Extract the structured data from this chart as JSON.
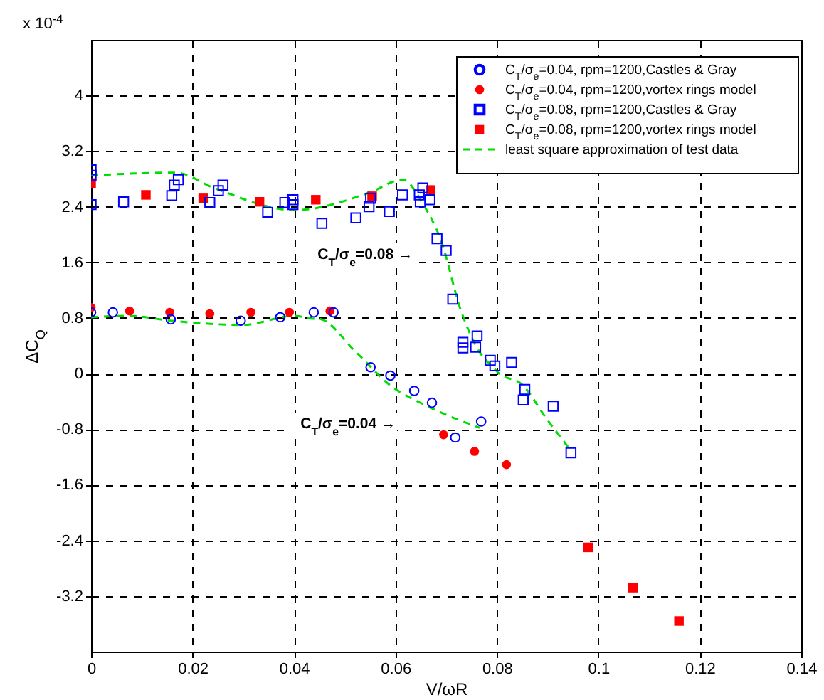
{
  "chart_data": {
    "type": "scatter",
    "xlabel": "V/ωR",
    "ylabel": "ΔC$_{Q}$",
    "annotations": [
      "x 10$^{-4}$",
      "C$_{T}$/σ$_{e}$=0.08 →",
      "C$_{T}$/σ$_{e}$=0.04 →"
    ],
    "xlim": [
      0,
      0.14
    ],
    "xticks": [
      0,
      0.02,
      0.04,
      0.06,
      0.08,
      0.1,
      0.12,
      0.14
    ],
    "ylim": [
      -4,
      4.8
    ],
    "yticks": [
      -3.2,
      -2.4,
      -1.6,
      -0.8,
      0,
      0.8,
      1.6,
      2.4,
      3.2,
      4
    ],
    "grid": true,
    "legend": "top right",
    "series": [
      {
        "name": "C$_{T}$/σ$_{e}$=0.04, rpm=1200,Castles & Gray",
        "color": "#0000ff",
        "marker": "circle",
        "x": [
          0,
          0.0043,
          0.0157,
          0.0295,
          0.0373,
          0.0439,
          0.0478,
          0.0551,
          0.059,
          0.0637,
          0.0672,
          0.0718,
          0.0769
        ],
        "values": [
          0.88,
          0.88,
          0.78,
          0.76,
          0.81,
          0.88,
          0.88,
          0.09,
          -0.03,
          -0.25,
          -0.42,
          -0.92,
          -0.69
        ]
      },
      {
        "name": "C$_{T}$/σ$_{e}$=0.04, rpm=1200,vortex rings model",
        "color": "#ff0000",
        "marker": "circle",
        "x": [
          0,
          0.0076,
          0.0155,
          0.0234,
          0.0315,
          0.0391,
          0.0471,
          0.0695,
          0.0756,
          0.0819
        ],
        "values": [
          0.95,
          0.9,
          0.88,
          0.86,
          0.88,
          0.88,
          0.9,
          -0.88,
          -1.12,
          -1.31
        ]
      },
      {
        "name": "C$_{T}$/σ$_{e}$=0.08, rpm=1200,Castles & Gray",
        "color": "#0000ff",
        "marker": "square",
        "x": [
          0,
          0,
          0,
          0.0064,
          0.0159,
          0.0164,
          0.0172,
          0.0234,
          0.0251,
          0.026,
          0.0348,
          0.0382,
          0.0398,
          0.0398,
          0.0455,
          0.0522,
          0.0548,
          0.0551,
          0.0588,
          0.0614,
          0.0647,
          0.0654,
          0.0649,
          0.0668,
          0.0682,
          0.07,
          0.0713,
          0.0733,
          0.0733,
          0.0761,
          0.0758,
          0.0787,
          0.0796,
          0.0829,
          0.0855,
          0.0852,
          0.0911,
          0.0946
        ],
        "values": [
          2.93,
          2.85,
          2.43,
          2.47,
          2.56,
          2.71,
          2.79,
          2.46,
          2.63,
          2.71,
          2.32,
          2.46,
          2.5,
          2.43,
          2.16,
          2.24,
          2.4,
          2.52,
          2.33,
          2.57,
          2.57,
          2.67,
          2.47,
          2.5,
          1.94,
          1.77,
          1.07,
          0.45,
          0.37,
          0.54,
          0.38,
          0.19,
          0.11,
          0.16,
          -0.23,
          -0.38,
          -0.47,
          -1.14
        ]
      },
      {
        "name": "C$_{T}$/σ$_{e}$=0.08, rpm=1200,vortex rings model",
        "color": "#ff0000",
        "marker": "square",
        "x": [
          0,
          0.0108,
          0.0221,
          0.0332,
          0.0443,
          0.0554,
          0.0669,
          0.098,
          0.1068,
          0.1159
        ],
        "values": [
          2.74,
          2.57,
          2.52,
          2.47,
          2.5,
          2.55,
          2.64,
          -2.5,
          -3.08,
          -3.56
        ]
      },
      {
        "name": "least square approximation of test data",
        "type": "line",
        "line_style": "dashed",
        "color": "#00dd00",
        "x": [
          0,
          0.0167,
          0.0242,
          0.0401,
          0.0551,
          0.0614,
          0.0655,
          0.0691,
          0.0728,
          0.0766,
          0.0794,
          0.0803,
          0.085,
          0.0897,
          0.0944
        ],
        "values": [
          2.85,
          2.89,
          2.67,
          2.35,
          2.61,
          2.79,
          2.43,
          1.89,
          0.93,
          0.31,
          0.08,
          0.01,
          -0.16,
          -0.64,
          -1.09
        ]
      },
      {
        "type": "line",
        "line_style": "dashed",
        "color": "#00dd00",
        "x": [
          0,
          0.0073,
          0.0157,
          0.0298,
          0.0401,
          0.0438,
          0.0447,
          0.0522,
          0.0588,
          0.0663,
          0.0766
        ],
        "values": [
          0.81,
          0.83,
          0.76,
          0.7,
          0.83,
          0.79,
          0.79,
          0.31,
          -0.16,
          -0.47,
          -0.78
        ]
      }
    ]
  }
}
